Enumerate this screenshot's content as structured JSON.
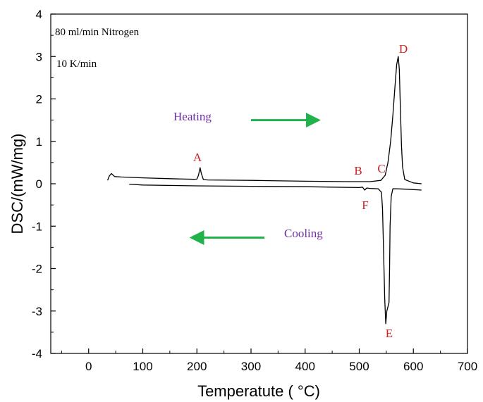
{
  "chart_data": {
    "type": "line",
    "xlabel": "Temperatute ( °C)",
    "ylabel": "DSC/(mW/mg)",
    "xlim": [
      -70,
      700
    ],
    "ylim": [
      -4,
      4
    ],
    "x_ticks": [
      0,
      100,
      200,
      300,
      400,
      500,
      600,
      700
    ],
    "y_ticks": [
      4,
      3,
      2,
      1,
      0,
      -1,
      -2,
      -3,
      -4
    ],
    "grid": false,
    "series": [
      {
        "segment": "heating",
        "points": [
          [
            35,
            0.08
          ],
          [
            38,
            0.18
          ],
          [
            42,
            0.24
          ],
          [
            48,
            0.17
          ],
          [
            60,
            0.16
          ],
          [
            100,
            0.14
          ],
          [
            150,
            0.12
          ],
          [
            195,
            0.105
          ],
          [
            200,
            0.11
          ],
          [
            203,
            0.2
          ],
          [
            206,
            0.38
          ],
          [
            208,
            0.25
          ],
          [
            212,
            0.1
          ],
          [
            220,
            0.09
          ],
          [
            300,
            0.08
          ],
          [
            400,
            0.06
          ],
          [
            480,
            0.05
          ],
          [
            520,
            0.05
          ],
          [
            540,
            0.08
          ],
          [
            548,
            0.2
          ],
          [
            553,
            0.5
          ],
          [
            558,
            1.0
          ],
          [
            562,
            1.6
          ],
          [
            566,
            2.3
          ],
          [
            569,
            2.8
          ],
          [
            572,
            3.0
          ],
          [
            574,
            2.7
          ],
          [
            576,
            1.8
          ],
          [
            578,
            0.9
          ],
          [
            580,
            0.4
          ],
          [
            584,
            0.1
          ],
          [
            600,
            0.02
          ],
          [
            615,
            0.0
          ]
        ]
      },
      {
        "segment": "cooling",
        "points": [
          [
            615,
            -0.15
          ],
          [
            590,
            -0.13
          ],
          [
            570,
            -0.12
          ],
          [
            562,
            -0.12
          ],
          [
            559,
            -0.3
          ],
          [
            557,
            -1.0
          ],
          [
            556,
            -2.0
          ],
          [
            555,
            -2.8
          ],
          [
            553,
            -2.9
          ],
          [
            551,
            -3.0
          ],
          [
            549,
            -3.3
          ],
          [
            547,
            -2.7
          ],
          [
            545,
            -1.6
          ],
          [
            543,
            -0.6
          ],
          [
            541,
            -0.2
          ],
          [
            535,
            -0.12
          ],
          [
            520,
            -0.11
          ],
          [
            514,
            -0.1
          ],
          [
            510,
            -0.15
          ],
          [
            506,
            -0.08
          ],
          [
            500,
            -0.09
          ],
          [
            450,
            -0.08
          ],
          [
            400,
            -0.07
          ],
          [
            300,
            -0.06
          ],
          [
            200,
            -0.05
          ],
          [
            100,
            -0.03
          ],
          [
            75,
            -0.01
          ]
        ]
      }
    ],
    "annotations": [
      {
        "text": "80 ml/min Nitrogen",
        "kind": "corner"
      },
      {
        "text": "10 K/min",
        "kind": "corner"
      },
      {
        "text": "Heating",
        "kind": "purple"
      },
      {
        "text": "Cooling",
        "kind": "purple"
      },
      {
        "text": "A",
        "kind": "point"
      },
      {
        "text": "B",
        "kind": "point"
      },
      {
        "text": "C",
        "kind": "point"
      },
      {
        "text": "D",
        "kind": "point"
      },
      {
        "text": "E",
        "kind": "point"
      },
      {
        "text": "F",
        "kind": "point"
      }
    ],
    "arrows": [
      {
        "direction": "right",
        "from": 300,
        "to": 425,
        "y": 1.5
      },
      {
        "direction": "left",
        "from": 325,
        "to": 190,
        "y": -1.27
      }
    ],
    "colors": {
      "curve": "#000000",
      "point_label": "#cc2222",
      "purple_label": "#7030a0",
      "arrow": "#22b24c"
    }
  }
}
